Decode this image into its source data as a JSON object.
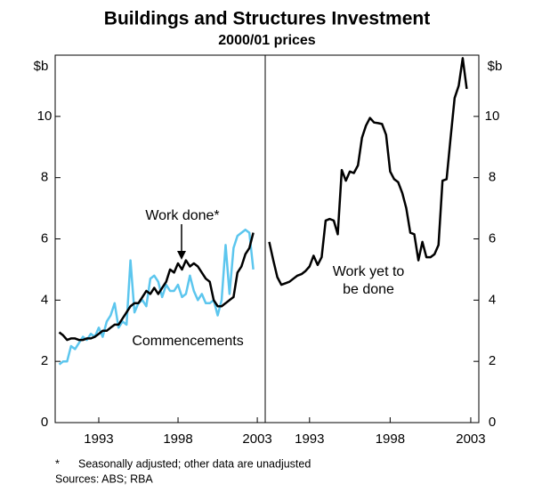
{
  "chart_data": {
    "type": "line",
    "title": "Buildings and Structures Investment",
    "subtitle": "2000/01 prices",
    "y_unit_left": "$b",
    "y_unit_right": "$b",
    "ylim": [
      0,
      12
    ],
    "yticks": [
      0,
      2,
      4,
      6,
      8,
      10
    ],
    "xlim": [
      1990.25,
      2003.5
    ],
    "xticks": [
      1993,
      1998,
      2003
    ],
    "x": [
      1990.5,
      1990.75,
      1991,
      1991.25,
      1991.5,
      1991.75,
      1992,
      1992.25,
      1992.5,
      1992.75,
      1993,
      1993.25,
      1993.5,
      1993.75,
      1994,
      1994.25,
      1994.5,
      1994.75,
      1995,
      1995.25,
      1995.5,
      1995.75,
      1996,
      1996.25,
      1996.5,
      1996.75,
      1997,
      1997.25,
      1997.5,
      1997.75,
      1998,
      1998.25,
      1998.5,
      1998.75,
      1999,
      1999.25,
      1999.5,
      1999.75,
      2000,
      2000.25,
      2000.5,
      2000.75,
      2001,
      2001.25,
      2001.5,
      2001.75,
      2002,
      2002.25,
      2002.5,
      2002.75
    ],
    "series": [
      {
        "name": "Commencements",
        "color": "#5cc6ee",
        "panel": "left",
        "values": [
          1.9,
          2.0,
          2.0,
          2.5,
          2.4,
          2.6,
          2.8,
          2.7,
          2.9,
          2.8,
          3.1,
          2.8,
          3.3,
          3.5,
          3.9,
          3.1,
          3.3,
          3.2,
          5.3,
          3.6,
          3.9,
          4.0,
          3.8,
          4.7,
          4.8,
          4.6,
          4.1,
          4.5,
          4.3,
          4.3,
          4.5,
          4.1,
          4.2,
          4.8,
          4.3,
          4.0,
          4.2,
          3.9,
          3.9,
          4.0,
          3.5,
          4.0,
          5.8,
          4.2,
          5.7,
          6.1,
          6.2,
          6.3,
          6.2,
          5.0
        ]
      },
      {
        "name": "Work done*",
        "color": "#000000",
        "panel": "left",
        "values": [
          2.95,
          2.85,
          2.7,
          2.75,
          2.75,
          2.7,
          2.7,
          2.75,
          2.75,
          2.8,
          2.9,
          3.0,
          3.0,
          3.1,
          3.2,
          3.2,
          3.4,
          3.6,
          3.8,
          3.9,
          3.9,
          4.1,
          4.3,
          4.2,
          4.4,
          4.2,
          4.4,
          4.6,
          5.0,
          4.9,
          5.2,
          5.0,
          5.3,
          5.1,
          5.2,
          5.1,
          4.9,
          4.7,
          4.6,
          4.0,
          3.8,
          3.8,
          3.9,
          4.0,
          4.1,
          4.9,
          5.1,
          5.5,
          5.7,
          6.2
        ]
      },
      {
        "name": "Work yet to be done",
        "color": "#000000",
        "panel": "right",
        "values": [
          5.9,
          5.3,
          4.75,
          4.5,
          4.55,
          4.6,
          4.7,
          4.8,
          4.85,
          4.95,
          5.1,
          5.45,
          5.15,
          5.4,
          6.6,
          6.65,
          6.6,
          6.15,
          8.25,
          7.9,
          8.2,
          8.15,
          8.4,
          9.3,
          9.7,
          9.95,
          9.8,
          9.78,
          9.75,
          9.4,
          8.2,
          7.95,
          7.85,
          7.5,
          7.0,
          6.2,
          6.15,
          5.3,
          5.9,
          5.4,
          5.4,
          5.5,
          5.8,
          7.9,
          7.95,
          9.3,
          10.6,
          11.0,
          11.9,
          10.9
        ]
      }
    ],
    "annotations": {
      "work_done": "Work done*",
      "commencements": "Commencements",
      "wytbd_1": "Work yet to",
      "wytbd_2": "be done"
    },
    "footnote_mark": "*",
    "footnote": "Seasonally adjusted; other data are unadjusted",
    "sources": "Sources: ABS; RBA"
  }
}
